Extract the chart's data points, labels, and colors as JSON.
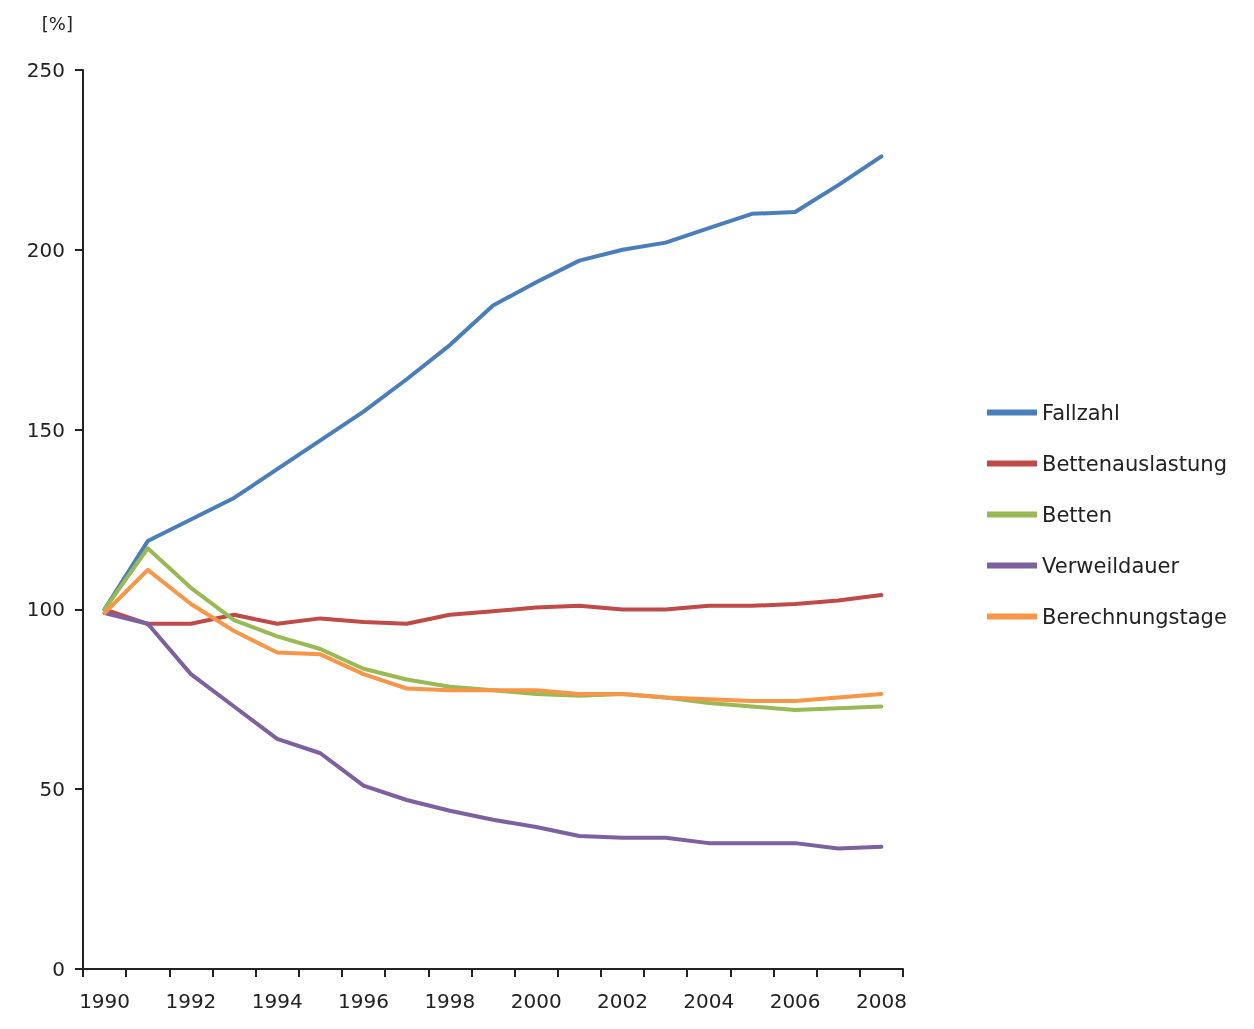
{
  "chart_data": {
    "type": "line",
    "ylabel": "[%]",
    "categories": [
      "1990",
      null,
      "1992",
      null,
      "1994",
      null,
      "1996",
      null,
      "1998",
      null,
      "2000",
      null,
      "2002",
      null,
      "2004",
      null,
      "2006",
      null,
      "2008"
    ],
    "series": [
      {
        "name": "Fallzahl",
        "color": "#4a7ebb",
        "values": [
          100,
          119,
          125,
          131,
          139,
          147,
          155,
          164,
          173.5,
          184.5,
          191,
          197,
          200,
          202,
          206,
          210,
          210.5,
          218,
          226
        ]
      },
      {
        "name": "Bettenauslastung",
        "color": "#be4b48",
        "values": [
          100,
          96,
          96,
          98.5,
          96,
          97.5,
          96.5,
          96,
          98.5,
          99.5,
          100.5,
          101,
          100,
          100,
          101,
          101,
          101.5,
          102.5,
          104
        ]
      },
      {
        "name": "Betten",
        "color": "#98b954",
        "values": [
          100,
          117,
          106,
          97,
          92.5,
          89,
          83.5,
          80.5,
          78.5,
          77.5,
          76.5,
          76,
          76.5,
          75.5,
          74,
          73,
          72,
          72.5,
          73
        ]
      },
      {
        "name": "Verweildauer",
        "color": "#7d60a0",
        "values": [
          99,
          96,
          82,
          73,
          64,
          60,
          51,
          47,
          44,
          41.5,
          39.5,
          37,
          36.5,
          36.5,
          35,
          35,
          35,
          33.5,
          34
        ]
      },
      {
        "name": "Berechnungstage",
        "color": "#f79646",
        "values": [
          99,
          111,
          101.5,
          94,
          88,
          87.5,
          82,
          78,
          77.5,
          77.5,
          77.5,
          76.5,
          76.5,
          75.5,
          75,
          74.5,
          74.5,
          75.5,
          76.5
        ]
      }
    ],
    "ylim": [
      0,
      250
    ],
    "yticks": [
      0,
      50,
      100,
      150,
      200,
      250
    ],
    "grid": false,
    "legend": "right",
    "marker": "none",
    "line_style": "solid"
  }
}
